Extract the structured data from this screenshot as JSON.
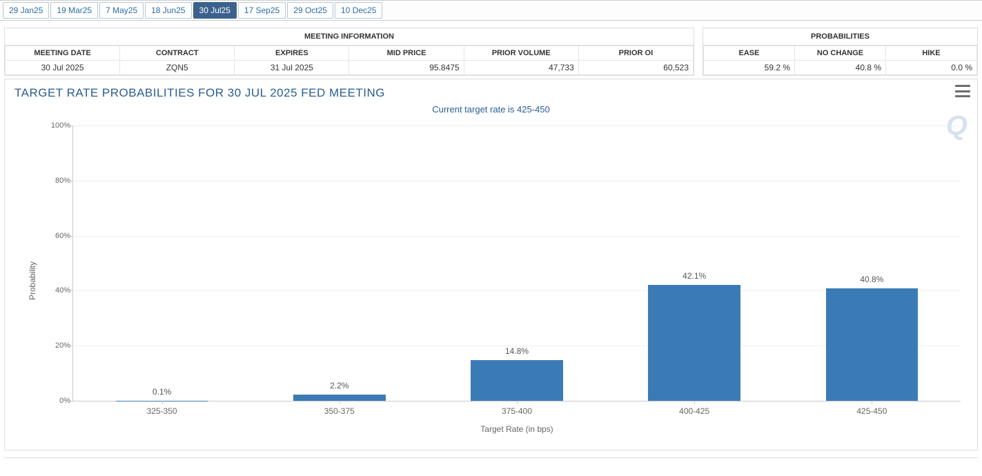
{
  "tabs": [
    {
      "label": "29 Jan25",
      "active": false
    },
    {
      "label": "19 Mar25",
      "active": false
    },
    {
      "label": "7 May25",
      "active": false
    },
    {
      "label": "18 Jun25",
      "active": false
    },
    {
      "label": "30 Jul25",
      "active": true
    },
    {
      "label": "17 Sep25",
      "active": false
    },
    {
      "label": "29 Oct25",
      "active": false
    },
    {
      "label": "10 Dec25",
      "active": false
    }
  ],
  "meeting_info": {
    "title": "MEETING INFORMATION",
    "headers": [
      "MEETING DATE",
      "CONTRACT",
      "EXPIRES",
      "MID PRICE",
      "PRIOR VOLUME",
      "PRIOR OI"
    ],
    "row": {
      "meeting_date": "30 Jul 2025",
      "contract": "ZQN5",
      "expires": "31 Jul 2025",
      "mid_price": "95.8475",
      "prior_volume": "47,733",
      "prior_oi": "60,523"
    }
  },
  "probabilities": {
    "title": "PROBABILITIES",
    "headers": [
      "EASE",
      "NO CHANGE",
      "HIKE"
    ],
    "row": {
      "ease": "59.2 %",
      "no_change": "40.8 %",
      "hike": "0.0 %"
    }
  },
  "chart": {
    "title": "TARGET RATE PROBABILITIES FOR 30 JUL 2025 FED MEETING",
    "subtitle": "Current target rate is 425-450",
    "type": "bar",
    "ylabel": "Probability",
    "xlabel": "Target Rate (in bps)",
    "ylim": [
      0,
      100
    ],
    "ytick_step": 20,
    "yticks": [
      0,
      20,
      40,
      60,
      80,
      100
    ],
    "ytick_labels": [
      "0%",
      "20%",
      "40%",
      "60%",
      "80%",
      "100%"
    ],
    "categories": [
      "325-350",
      "350-375",
      "375-400",
      "400-425",
      "425-450"
    ],
    "values": [
      0.1,
      2.2,
      14.8,
      42.1,
      40.8
    ],
    "value_labels": [
      "0.1%",
      "2.2%",
      "14.8%",
      "42.1%",
      "40.8%"
    ],
    "bar_color": "#3b7bb5",
    "bar_width_ratio": 0.52,
    "background_color": "#ffffff",
    "grid_color": "#eeeeee",
    "axis_color": "#c9c9c9",
    "title_color": "#2a5d8f",
    "title_fontsize": 17,
    "subtitle_fontsize": 13,
    "label_fontsize": 12,
    "tick_fontsize": 11,
    "watermark": "Q"
  }
}
